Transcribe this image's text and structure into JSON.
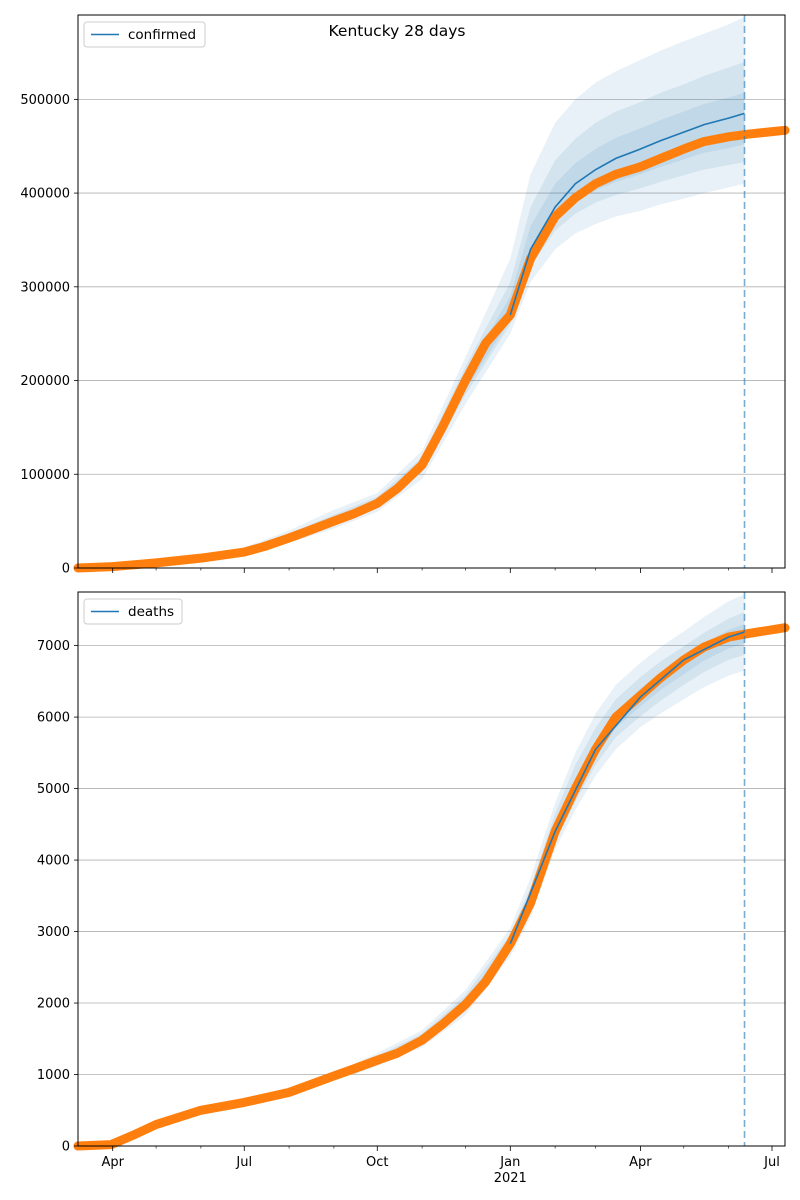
{
  "figure": {
    "title": "Kentucky 28 days"
  },
  "chart_data": [
    {
      "type": "line",
      "series_name": "confirmed",
      "legend": {
        "label": "confirmed",
        "placement": "top-left"
      },
      "grid": {
        "y": true,
        "x": false
      },
      "xlim": [
        "2020-03-08",
        "2021-07-10"
      ],
      "ylim": [
        0,
        590000
      ],
      "yticks": [
        0,
        100000,
        200000,
        300000,
        400000,
        500000
      ],
      "ytick_labels": [
        "0",
        "100000",
        "200000",
        "300000",
        "400000",
        "500000"
      ],
      "forecast_start": "2021-06-12",
      "colors": {
        "model": "#1f77b4",
        "observed": "#ff7f0e",
        "band": "#1f77b4",
        "forecast_line": "#1f77b4"
      },
      "observed": {
        "x": [
          "2020-03-08",
          "2020-04-01",
          "2020-05-01",
          "2020-06-01",
          "2020-07-01",
          "2020-07-15",
          "2020-08-01",
          "2020-08-15",
          "2020-09-01",
          "2020-09-15",
          "2020-10-01",
          "2020-10-15",
          "2020-11-01",
          "2020-11-15",
          "2020-12-01",
          "2020-12-15",
          "2021-01-01",
          "2021-01-15",
          "2021-02-01",
          "2021-02-15",
          "2021-03-01",
          "2021-03-15",
          "2021-04-01",
          "2021-04-15",
          "2021-05-01",
          "2021-05-15",
          "2021-06-01",
          "2021-06-15",
          "2021-07-10"
        ],
        "y": [
          0,
          1500,
          5500,
          10500,
          17000,
          23000,
          32000,
          40000,
          50000,
          58000,
          69000,
          85000,
          110000,
          150000,
          200000,
          240000,
          270000,
          330000,
          375000,
          395000,
          410000,
          420000,
          428000,
          437000,
          447000,
          455000,
          460000,
          463000,
          467000
        ]
      },
      "model_median": {
        "x": [
          "2021-01-01",
          "2021-01-15",
          "2021-02-01",
          "2021-02-15",
          "2021-03-01",
          "2021-03-15",
          "2021-04-01",
          "2021-04-15",
          "2021-05-01",
          "2021-05-15",
          "2021-06-01",
          "2021-06-12"
        ],
        "y": [
          270000,
          340000,
          385000,
          410000,
          425000,
          437000,
          447000,
          456000,
          465000,
          473000,
          480000,
          485000
        ]
      },
      "uncertainty_bands": [
        {
          "x": [
            "2020-07-01",
            "2020-08-01",
            "2020-09-01",
            "2020-10-01",
            "2020-11-01",
            "2020-12-01",
            "2021-01-01",
            "2021-01-15",
            "2021-02-01",
            "2021-02-15",
            "2021-03-01",
            "2021-03-15",
            "2021-04-01",
            "2021-04-15",
            "2021-05-01",
            "2021-05-15",
            "2021-06-01",
            "2021-06-12"
          ],
          "lower": [
            13000,
            27000,
            42000,
            60000,
            95000,
            175000,
            250000,
            305000,
            340000,
            357000,
            367000,
            375000,
            381000,
            388000,
            394000,
            400000,
            406000,
            410000
          ],
          "upper": [
            22000,
            40000,
            62000,
            80000,
            125000,
            225000,
            330000,
            420000,
            475000,
            500000,
            518000,
            530000,
            542000,
            552000,
            562000,
            570000,
            580000,
            588000
          ]
        },
        {
          "x": [
            "2020-07-01",
            "2020-08-01",
            "2020-09-01",
            "2020-10-01",
            "2020-11-01",
            "2020-12-01",
            "2021-01-01",
            "2021-01-15",
            "2021-02-01",
            "2021-02-15",
            "2021-03-01",
            "2021-03-15",
            "2021-04-01",
            "2021-04-15",
            "2021-05-01",
            "2021-05-15",
            "2021-06-01",
            "2021-06-12"
          ],
          "lower": [
            14500,
            29500,
            46000,
            64000,
            102000,
            185000,
            260000,
            322000,
            360000,
            378000,
            390000,
            398000,
            405000,
            412000,
            419000,
            425000,
            430000,
            433000
          ],
          "upper": [
            20000,
            37000,
            57000,
            76000,
            118000,
            215000,
            305000,
            385000,
            435000,
            458000,
            475000,
            487000,
            497000,
            507000,
            516000,
            525000,
            534000,
            540000
          ]
        },
        {
          "x": [
            "2020-07-01",
            "2020-08-01",
            "2020-09-01",
            "2020-10-01",
            "2020-11-01",
            "2020-12-01",
            "2021-01-01",
            "2021-01-15",
            "2021-02-01",
            "2021-02-15",
            "2021-03-01",
            "2021-03-15",
            "2021-04-01",
            "2021-04-15",
            "2021-05-01",
            "2021-05-15",
            "2021-06-01",
            "2021-06-12"
          ],
          "lower": [
            15500,
            31000,
            48000,
            66000,
            106000,
            190000,
            265000,
            330000,
            370000,
            390000,
            403000,
            412000,
            420000,
            428000,
            436000,
            443000,
            448000,
            452000
          ],
          "upper": [
            18500,
            35000,
            54000,
            73000,
            114000,
            208000,
            290000,
            365000,
            410000,
            432000,
            447000,
            459000,
            469000,
            478000,
            487000,
            495000,
            502000,
            507000
          ]
        }
      ]
    },
    {
      "type": "line",
      "series_name": "deaths",
      "legend": {
        "label": "deaths",
        "placement": "top-left"
      },
      "grid": {
        "y": true,
        "x": false
      },
      "xlim": [
        "2020-03-08",
        "2021-07-10"
      ],
      "ylim": [
        0,
        7750
      ],
      "yticks": [
        0,
        1000,
        2000,
        3000,
        4000,
        5000,
        6000,
        7000
      ],
      "ytick_labels": [
        "0",
        "1000",
        "2000",
        "3000",
        "4000",
        "5000",
        "6000",
        "7000"
      ],
      "xtick_labels": [
        "Apr",
        "Jul",
        "Oct",
        "Jan",
        "Apr",
        "Jul"
      ],
      "xtick_dates": [
        "2020-04-01",
        "2020-07-01",
        "2020-10-01",
        "2021-01-01",
        "2021-04-01",
        "2021-07-01"
      ],
      "x_secondary_label": "2021",
      "forecast_start": "2021-06-12",
      "colors": {
        "model": "#1f77b4",
        "observed": "#ff7f0e",
        "band": "#1f77b4",
        "forecast_line": "#1f77b4"
      },
      "observed": {
        "x": [
          "2020-03-08",
          "2020-03-31",
          "2020-04-15",
          "2020-05-01",
          "2020-06-01",
          "2020-07-01",
          "2020-08-01",
          "2020-09-01",
          "2020-09-15",
          "2020-10-01",
          "2020-10-15",
          "2020-11-01",
          "2020-11-15",
          "2020-12-01",
          "2020-12-15",
          "2021-01-01",
          "2021-01-15",
          "2021-02-01",
          "2021-02-15",
          "2021-03-01",
          "2021-03-15",
          "2021-04-01",
          "2021-04-15",
          "2021-05-01",
          "2021-05-15",
          "2021-06-01",
          "2021-06-15",
          "2021-07-10"
        ],
        "y": [
          0,
          20,
          150,
          300,
          500,
          610,
          750,
          980,
          1080,
          1200,
          1300,
          1480,
          1700,
          1980,
          2300,
          2830,
          3400,
          4400,
          5000,
          5550,
          6000,
          6300,
          6550,
          6800,
          6980,
          7120,
          7170,
          7250
        ]
      },
      "model_median": {
        "x": [
          "2021-01-01",
          "2021-02-01",
          "2021-03-01",
          "2021-04-01",
          "2021-05-01",
          "2021-06-01",
          "2021-06-12"
        ],
        "y": [
          2830,
          4400,
          5550,
          6280,
          6800,
          7120,
          7190
        ]
      },
      "uncertainty_bands": [
        {
          "x": [
            "2020-09-15",
            "2020-10-01",
            "2020-11-01",
            "2020-12-01",
            "2021-01-01",
            "2021-01-15",
            "2021-02-01",
            "2021-02-15",
            "2021-03-01",
            "2021-03-15",
            "2021-04-01",
            "2021-04-15",
            "2021-05-01",
            "2021-05-15",
            "2021-06-01",
            "2021-06-12"
          ],
          "lower": [
            1000,
            1120,
            1380,
            1830,
            2650,
            3200,
            4150,
            4700,
            5180,
            5550,
            5860,
            6050,
            6250,
            6420,
            6580,
            6650
          ],
          "upper": [
            1150,
            1300,
            1620,
            2180,
            3050,
            3750,
            4800,
            5500,
            6050,
            6450,
            6760,
            6980,
            7200,
            7400,
            7620,
            7720
          ]
        },
        {
          "x": [
            "2020-09-15",
            "2020-10-01",
            "2020-11-01",
            "2020-12-01",
            "2021-01-01",
            "2021-01-15",
            "2021-02-01",
            "2021-02-15",
            "2021-03-01",
            "2021-03-15",
            "2021-04-01",
            "2021-04-15",
            "2021-05-01",
            "2021-05-15",
            "2021-06-01",
            "2021-06-12"
          ],
          "lower": [
            1030,
            1150,
            1420,
            1880,
            2720,
            3290,
            4250,
            4820,
            5330,
            5720,
            6010,
            6230,
            6450,
            6630,
            6800,
            6870
          ],
          "upper": [
            1120,
            1260,
            1570,
            2110,
            2960,
            3620,
            4650,
            5330,
            5850,
            6250,
            6560,
            6780,
            6990,
            7180,
            7380,
            7470
          ]
        },
        {
          "x": [
            "2020-09-15",
            "2020-10-01",
            "2020-11-01",
            "2020-12-01",
            "2021-01-01",
            "2021-01-15",
            "2021-02-01",
            "2021-02-15",
            "2021-03-01",
            "2021-03-15",
            "2021-04-01",
            "2021-04-15",
            "2021-05-01",
            "2021-05-15",
            "2021-06-01",
            "2021-06-12"
          ],
          "lower": [
            1050,
            1170,
            1450,
            1920,
            2770,
            3350,
            4330,
            4920,
            5440,
            5850,
            6150,
            6380,
            6600,
            6790,
            6960,
            7030
          ],
          "upper": [
            1100,
            1230,
            1520,
            2040,
            2890,
            3500,
            4500,
            5150,
            5670,
            6080,
            6400,
            6620,
            6830,
            7020,
            7220,
            7300
          ]
        }
      ]
    }
  ]
}
